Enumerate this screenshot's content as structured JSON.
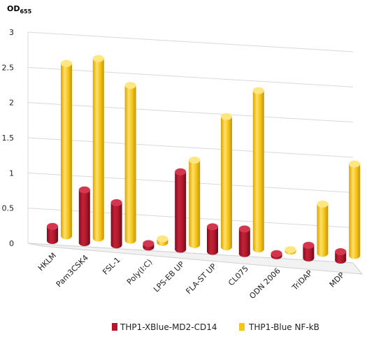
{
  "chart_data": {
    "type": "bar",
    "ylabel_main": "OD",
    "ylabel_sub": "655",
    "categories": [
      "HKLM",
      "Pam3CSK4",
      "FSL-1",
      "Poly(I:C)",
      "LPS-EB UP",
      "FLA-ST UP",
      "CL075",
      "ODN 2006",
      "TriDAP",
      "MDP"
    ],
    "series": [
      {
        "name": "THP1-XBlue-MD2-CD14",
        "color": "#b3182b",
        "values": [
          0.2,
          0.75,
          0.6,
          0.05,
          1.1,
          0.35,
          0.35,
          0.03,
          0.18,
          0.12
        ]
      },
      {
        "name": "THP1-Blue NF-kB",
        "color": "#f5c518",
        "values": [
          2.45,
          2.55,
          2.2,
          0.05,
          1.2,
          1.85,
          2.25,
          0.02,
          0.7,
          1.3
        ]
      }
    ],
    "yticks": [
      "0",
      "0.5",
      "1",
      "1.5",
      "2",
      "2.5",
      "3"
    ],
    "ylim": [
      0,
      3
    ],
    "grid": true,
    "legend_position": "bottom"
  }
}
